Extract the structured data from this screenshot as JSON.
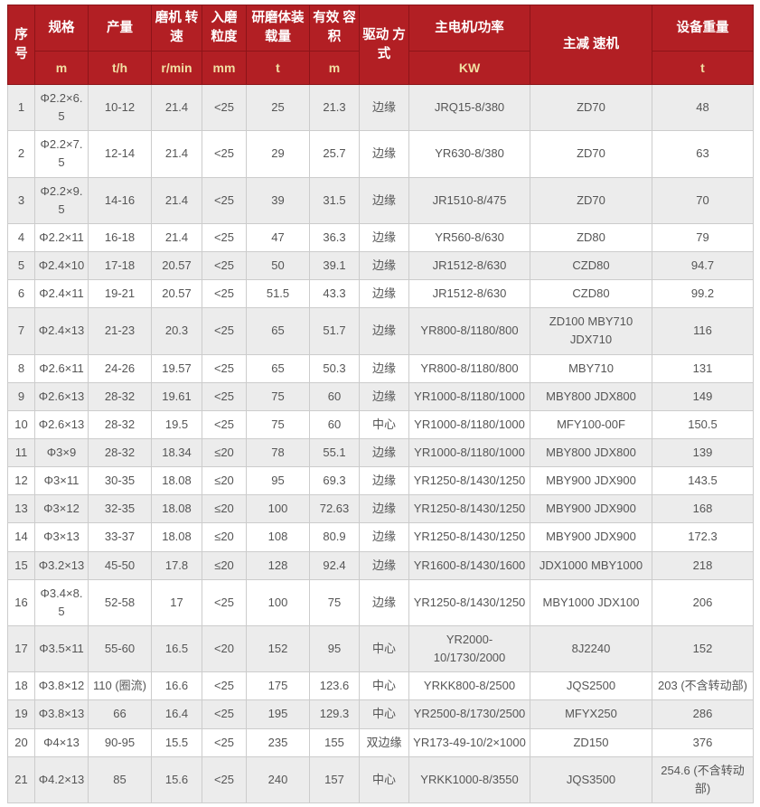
{
  "colors": {
    "header_bg": "#b21f24",
    "header_border": "#8c1418",
    "header_text": "#ffffff",
    "header_unit_text": "#f1dfa3",
    "row_stripe": "#ececec",
    "row_plain": "#ffffff",
    "cell_border": "#cccccc",
    "cell_text": "#555555"
  },
  "table": {
    "columns": [
      {
        "label": "序 号",
        "unit": null
      },
      {
        "label": "规格",
        "unit": "m"
      },
      {
        "label": "产量",
        "unit": "t/h"
      },
      {
        "label": "磨机 转速",
        "unit": "r/min"
      },
      {
        "label": "入磨 粒度",
        "unit": "mm"
      },
      {
        "label": "研磨体装载量",
        "unit": "t"
      },
      {
        "label": "有效 容积",
        "unit": "m"
      },
      {
        "label": "驱动 方式",
        "unit": null
      },
      {
        "label": "主电机/功率",
        "unit": "KW"
      },
      {
        "label": "主减 速机",
        "unit": null
      },
      {
        "label": "设备重量",
        "unit": "t"
      }
    ],
    "rows": [
      [
        "1",
        "Φ2.2×6.5",
        "10-12",
        "21.4",
        "<25",
        "25",
        "21.3",
        "边缘",
        "JRQ15-8/380",
        "ZD70",
        "48"
      ],
      [
        "2",
        "Φ2.2×7.5",
        "12-14",
        "21.4",
        "<25",
        "29",
        "25.7",
        "边缘",
        "YR630-8/380",
        "ZD70",
        "63"
      ],
      [
        "3",
        "Φ2.2×9.5",
        "14-16",
        "21.4",
        "<25",
        "39",
        "31.5",
        "边缘",
        "JR1510-8/475",
        "ZD70",
        "70"
      ],
      [
        "4",
        "Φ2.2×11",
        "16-18",
        "21.4",
        "<25",
        "47",
        "36.3",
        "边缘",
        "YR560-8/630",
        "ZD80",
        "79"
      ],
      [
        "5",
        "Φ2.4×10",
        "17-18",
        "20.57",
        "<25",
        "50",
        "39.1",
        "边缘",
        "JR1512-8/630",
        "CZD80",
        "94.7"
      ],
      [
        "6",
        "Φ2.4×11",
        "19-21",
        "20.57",
        "<25",
        "51.5",
        "43.3",
        "边缘",
        "JR1512-8/630",
        "CZD80",
        "99.2"
      ],
      [
        "7",
        "Φ2.4×13",
        "21-23",
        "20.3",
        "<25",
        "65",
        "51.7",
        "边缘",
        "YR800-8/1180/800",
        "ZD100 MBY710 JDX710",
        "116"
      ],
      [
        "8",
        "Φ2.6×11",
        "24-26",
        "19.57",
        "<25",
        "65",
        "50.3",
        "边缘",
        "YR800-8/1180/800",
        "MBY710",
        "131"
      ],
      [
        "9",
        "Φ2.6×13",
        "28-32",
        "19.61",
        "<25",
        "75",
        "60",
        "边缘",
        "YR1000-8/1180/1000",
        "MBY800 JDX800",
        "149"
      ],
      [
        "10",
        "Φ2.6×13",
        "28-32",
        "19.5",
        "<25",
        "75",
        "60",
        "中心",
        "YR1000-8/1180/1000",
        "MFY100-00F",
        "150.5"
      ],
      [
        "11",
        "Φ3×9",
        "28-32",
        "18.34",
        "≤20",
        "78",
        "55.1",
        "边缘",
        "YR1000-8/1180/1000",
        "MBY800 JDX800",
        "139"
      ],
      [
        "12",
        "Φ3×11",
        "30-35",
        "18.08",
        "≤20",
        "95",
        "69.3",
        "边缘",
        "YR1250-8/1430/1250",
        "MBY900 JDX900",
        "143.5"
      ],
      [
        "13",
        "Φ3×12",
        "32-35",
        "18.08",
        "≤20",
        "100",
        "72.63",
        "边缘",
        "YR1250-8/1430/1250",
        "MBY900 JDX900",
        "168"
      ],
      [
        "14",
        "Φ3×13",
        "33-37",
        "18.08",
        "≤20",
        "108",
        "80.9",
        "边缘",
        "YR1250-8/1430/1250",
        "MBY900 JDX900",
        "172.3"
      ],
      [
        "15",
        "Φ3.2×13",
        "45-50",
        "17.8",
        "≤20",
        "128",
        "92.4",
        "边缘",
        "YR1600-8/1430/1600",
        "JDX1000 MBY1000",
        "218"
      ],
      [
        "16",
        "Φ3.4×8.5",
        "52-58",
        "17",
        "<25",
        "100",
        "75",
        "边缘",
        "YR1250-8/1430/1250",
        "MBY1000 JDX100",
        "206"
      ],
      [
        "17",
        "Φ3.5×11",
        "55-60",
        "16.5",
        "<20",
        "152",
        "95",
        "中心",
        "YR2000-10/1730/2000",
        "8J2240",
        "152"
      ],
      [
        "18",
        "Φ3.8×12",
        "110 (圈流)",
        "16.6",
        "<25",
        "175",
        "123.6",
        "中心",
        "YRKK800-8/2500",
        "JQS2500",
        "203 (不含转动部)"
      ],
      [
        "19",
        "Φ3.8×13",
        "66",
        "16.4",
        "<25",
        "195",
        "129.3",
        "中心",
        "YR2500-8/1730/2500",
        "MFYX250",
        "286"
      ],
      [
        "20",
        "Φ4×13",
        "90-95",
        "15.5",
        "<25",
        "235",
        "155",
        "双边缘",
        "YR173-49-10/2×1000",
        "ZD150",
        "376"
      ],
      [
        "21",
        "Φ4.2×13",
        "85",
        "15.6",
        "<25",
        "240",
        "157",
        "中心",
        "YRKK1000-8/3550",
        "JQS3500",
        "254.6 (不含转动部)"
      ]
    ]
  }
}
